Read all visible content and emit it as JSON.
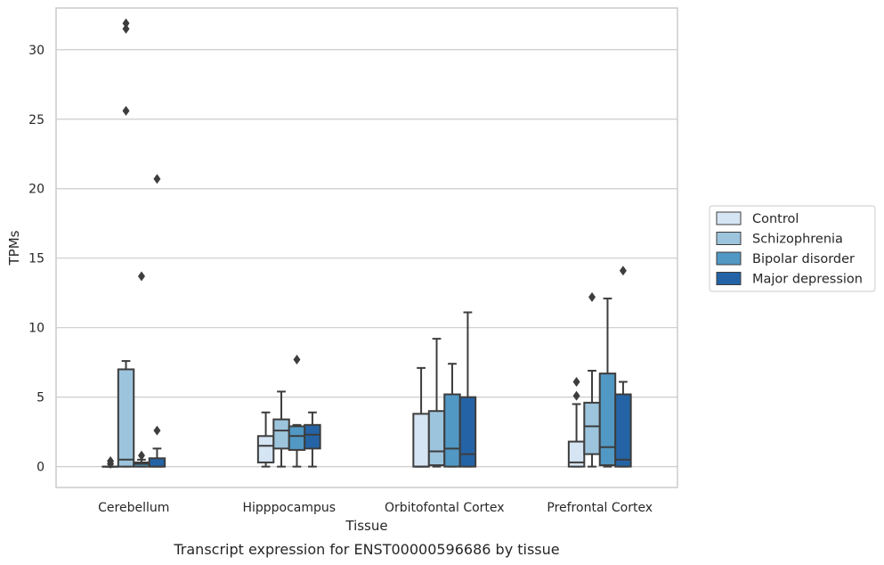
{
  "caption": "Transcript expression for ENST00000596686 by tissue",
  "chart_data": {
    "type": "box",
    "xlabel": "Tissue",
    "ylabel": "TPMs",
    "ylim": [
      -1.5,
      33
    ],
    "yticks": [
      0,
      5,
      10,
      15,
      20,
      25,
      30
    ],
    "grid": "horizontal",
    "legend_position": "right",
    "categories": [
      "Cerebellum",
      "Hipppocampus",
      "Orbitofontal Cortex",
      "Prefrontal Cortex"
    ],
    "series": [
      {
        "name": "Control",
        "color": "#d6e5f3",
        "boxes": [
          {
            "whisker_low": 0,
            "q1": 0,
            "median": 0,
            "q3": 0,
            "whisker_high": 0,
            "outliers": [
              0.2,
              0.4
            ]
          },
          {
            "whisker_low": 0,
            "q1": 0.3,
            "median": 1.5,
            "q3": 2.2,
            "whisker_high": 3.9,
            "outliers": []
          },
          {
            "whisker_low": 0,
            "q1": 0,
            "median": 0,
            "q3": 3.8,
            "whisker_high": 7.1,
            "outliers": []
          },
          {
            "whisker_low": 0,
            "q1": 0,
            "median": 0.3,
            "q3": 1.8,
            "whisker_high": 4.5,
            "outliers": [
              5.1,
              6.1
            ]
          }
        ]
      },
      {
        "name": "Schizophrenia",
        "color": "#9dc4dd",
        "boxes": [
          {
            "whisker_low": 0,
            "q1": 0,
            "median": 0.5,
            "q3": 7.0,
            "whisker_high": 7.6,
            "outliers": [
              25.6,
              31.5,
              31.9
            ]
          },
          {
            "whisker_low": 0,
            "q1": 1.3,
            "median": 2.6,
            "q3": 3.4,
            "whisker_high": 5.4,
            "outliers": []
          },
          {
            "whisker_low": 0,
            "q1": 0.1,
            "median": 1.1,
            "q3": 4.0,
            "whisker_high": 9.2,
            "outliers": []
          },
          {
            "whisker_low": 0,
            "q1": 0.9,
            "median": 2.9,
            "q3": 4.6,
            "whisker_high": 6.9,
            "outliers": [
              12.2
            ]
          }
        ]
      },
      {
        "name": "Bipolar disorder",
        "color": "#5298c4",
        "boxes": [
          {
            "whisker_low": 0,
            "q1": 0,
            "median": 0.2,
            "q3": 0.3,
            "whisker_high": 0.5,
            "outliers": [
              0.8,
              13.7
            ]
          },
          {
            "whisker_low": 0,
            "q1": 1.2,
            "median": 2.2,
            "q3": 2.9,
            "whisker_high": 3.0,
            "outliers": [
              7.7
            ]
          },
          {
            "whisker_low": 0,
            "q1": 0,
            "median": 1.3,
            "q3": 5.2,
            "whisker_high": 7.4,
            "outliers": []
          },
          {
            "whisker_low": 0,
            "q1": 0.1,
            "median": 1.4,
            "q3": 6.7,
            "whisker_high": 12.1,
            "outliers": []
          }
        ]
      },
      {
        "name": "Major depression",
        "color": "#2464a6",
        "boxes": [
          {
            "whisker_low": 0,
            "q1": 0,
            "median": 0,
            "q3": 0.6,
            "whisker_high": 1.3,
            "outliers": [
              2.6,
              20.7
            ]
          },
          {
            "whisker_low": 0,
            "q1": 1.3,
            "median": 2.3,
            "q3": 3.0,
            "whisker_high": 3.9,
            "outliers": []
          },
          {
            "whisker_low": 0,
            "q1": 0,
            "median": 0.9,
            "q3": 5.0,
            "whisker_high": 11.1,
            "outliers": []
          },
          {
            "whisker_low": 0,
            "q1": 0,
            "median": 0.5,
            "q3": 5.2,
            "whisker_high": 6.1,
            "outliers": [
              14.1
            ]
          }
        ]
      }
    ]
  }
}
